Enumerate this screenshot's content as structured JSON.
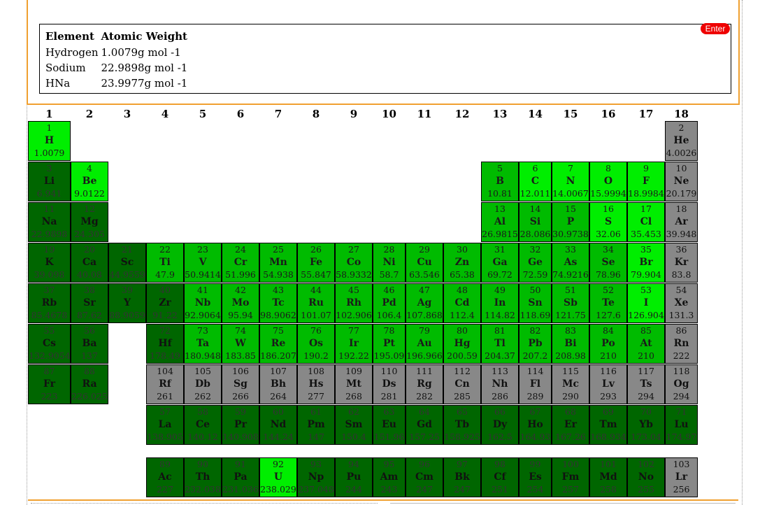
{
  "top_cut_text": "Na",
  "result_table": {
    "headers": [
      "Element",
      "Atomic Weight"
    ],
    "rows": [
      {
        "element": "Hydrogen",
        "weight": "1.0079g mol -1"
      },
      {
        "element": "Sodium",
        "weight": "22.9898g mol -1"
      },
      {
        "element": "HNa",
        "weight": "23.9977g mol -1"
      }
    ]
  },
  "enter_label": "Enter",
  "colors": {
    "bright": "#00ee00",
    "mid": "#00bb00",
    "dark": "#006600",
    "gray": "#888888",
    "panel_border": "#f0a030",
    "button": "#ee0000"
  },
  "groups": [
    "1",
    "2",
    "3",
    "4",
    "5",
    "6",
    "7",
    "8",
    "9",
    "10",
    "11",
    "12",
    "13",
    "14",
    "15",
    "16",
    "17",
    "18"
  ],
  "elements": [
    {
      "g": 1,
      "r": 1,
      "n": "1",
      "s": "H",
      "w": "1.0079",
      "c": "bright"
    },
    {
      "g": 18,
      "r": 1,
      "n": "2",
      "s": "He",
      "w": "4.0026",
      "c": "gray"
    },
    {
      "g": 1,
      "r": 2,
      "n": "3",
      "s": "Li",
      "w": "6.941",
      "c": "dark"
    },
    {
      "g": 2,
      "r": 2,
      "n": "4",
      "s": "Be",
      "w": "9.0122",
      "c": "bright"
    },
    {
      "g": 13,
      "r": 2,
      "n": "5",
      "s": "B",
      "w": "10.81",
      "c": "mid"
    },
    {
      "g": 14,
      "r": 2,
      "n": "6",
      "s": "C",
      "w": "12.011",
      "c": "bright"
    },
    {
      "g": 15,
      "r": 2,
      "n": "7",
      "s": "N",
      "w": "14.0067",
      "c": "bright"
    },
    {
      "g": 16,
      "r": 2,
      "n": "8",
      "s": "O",
      "w": "15.9994",
      "c": "bright"
    },
    {
      "g": 17,
      "r": 2,
      "n": "9",
      "s": "F",
      "w": "18.9984",
      "c": "bright"
    },
    {
      "g": 18,
      "r": 2,
      "n": "10",
      "s": "Ne",
      "w": "20.179",
      "c": "gray"
    },
    {
      "g": 1,
      "r": 3,
      "n": "11",
      "s": "Na",
      "w": "22.9898",
      "c": "dark"
    },
    {
      "g": 2,
      "r": 3,
      "n": "12",
      "s": "Mg",
      "w": "24.305",
      "c": "dark"
    },
    {
      "g": 13,
      "r": 3,
      "n": "13",
      "s": "Al",
      "w": "26.9815",
      "c": "mid"
    },
    {
      "g": 14,
      "r": 3,
      "n": "14",
      "s": "Si",
      "w": "28.086",
      "c": "mid"
    },
    {
      "g": 15,
      "r": 3,
      "n": "15",
      "s": "P",
      "w": "30.9738",
      "c": "mid"
    },
    {
      "g": 16,
      "r": 3,
      "n": "16",
      "s": "S",
      "w": "32.06",
      "c": "bright"
    },
    {
      "g": 17,
      "r": 3,
      "n": "17",
      "s": "Cl",
      "w": "35.453",
      "c": "bright"
    },
    {
      "g": 18,
      "r": 3,
      "n": "18",
      "s": "Ar",
      "w": "39.948",
      "c": "gray"
    },
    {
      "g": 1,
      "r": 4,
      "n": "19",
      "s": "K",
      "w": "39.098",
      "c": "dark"
    },
    {
      "g": 2,
      "r": 4,
      "n": "20",
      "s": "Ca",
      "w": "40.08",
      "c": "dark"
    },
    {
      "g": 3,
      "r": 4,
      "n": "21",
      "s": "Sc",
      "w": "44.9559",
      "c": "dark"
    },
    {
      "g": 4,
      "r": 4,
      "n": "22",
      "s": "Ti",
      "w": "47.9",
      "c": "mid"
    },
    {
      "g": 5,
      "r": 4,
      "n": "23",
      "s": "V",
      "w": "50.9414",
      "c": "mid"
    },
    {
      "g": 6,
      "r": 4,
      "n": "24",
      "s": "Cr",
      "w": "51.996",
      "c": "mid"
    },
    {
      "g": 7,
      "r": 4,
      "n": "25",
      "s": "Mn",
      "w": "54.938",
      "c": "mid"
    },
    {
      "g": 8,
      "r": 4,
      "n": "26",
      "s": "Fe",
      "w": "55.847",
      "c": "mid"
    },
    {
      "g": 9,
      "r": 4,
      "n": "27",
      "s": "Co",
      "w": "58.9332",
      "c": "mid"
    },
    {
      "g": 10,
      "r": 4,
      "n": "28",
      "s": "Ni",
      "w": "58.7",
      "c": "mid"
    },
    {
      "g": 11,
      "r": 4,
      "n": "29",
      "s": "Cu",
      "w": "63.546",
      "c": "mid"
    },
    {
      "g": 12,
      "r": 4,
      "n": "30",
      "s": "Zn",
      "w": "65.38",
      "c": "mid"
    },
    {
      "g": 13,
      "r": 4,
      "n": "31",
      "s": "Ga",
      "w": "69.72",
      "c": "mid"
    },
    {
      "g": 14,
      "r": 4,
      "n": "32",
      "s": "Ge",
      "w": "72.59",
      "c": "mid"
    },
    {
      "g": 15,
      "r": 4,
      "n": "33",
      "s": "As",
      "w": "74.9216",
      "c": "mid"
    },
    {
      "g": 16,
      "r": 4,
      "n": "34",
      "s": "Se",
      "w": "78.96",
      "c": "mid"
    },
    {
      "g": 17,
      "r": 4,
      "n": "35",
      "s": "Br",
      "w": "79.904",
      "c": "bright"
    },
    {
      "g": 18,
      "r": 4,
      "n": "36",
      "s": "Kr",
      "w": "83.8",
      "c": "gray"
    },
    {
      "g": 1,
      "r": 5,
      "n": "37",
      "s": "Rb",
      "w": "85.4678",
      "c": "dark"
    },
    {
      "g": 2,
      "r": 5,
      "n": "38",
      "s": "Sr",
      "w": "87.62",
      "c": "dark"
    },
    {
      "g": 3,
      "r": 5,
      "n": "39",
      "s": "Y",
      "w": "88.9059",
      "c": "dark"
    },
    {
      "g": 4,
      "r": 5,
      "n": "40",
      "s": "Zr",
      "w": "91.22",
      "c": "dark"
    },
    {
      "g": 5,
      "r": 5,
      "n": "41",
      "s": "Nb",
      "w": "92.9064",
      "c": "mid"
    },
    {
      "g": 6,
      "r": 5,
      "n": "42",
      "s": "Mo",
      "w": "95.94",
      "c": "mid"
    },
    {
      "g": 7,
      "r": 5,
      "n": "43",
      "s": "Tc",
      "w": "98.9062",
      "c": "mid"
    },
    {
      "g": 8,
      "r": 5,
      "n": "44",
      "s": "Ru",
      "w": "101.07",
      "c": "mid"
    },
    {
      "g": 9,
      "r": 5,
      "n": "45",
      "s": "Rh",
      "w": "102.906",
      "c": "mid"
    },
    {
      "g": 10,
      "r": 5,
      "n": "46",
      "s": "Pd",
      "w": "106.4",
      "c": "mid"
    },
    {
      "g": 11,
      "r": 5,
      "n": "47",
      "s": "Ag",
      "w": "107.868",
      "c": "mid"
    },
    {
      "g": 12,
      "r": 5,
      "n": "48",
      "s": "Cd",
      "w": "112.4",
      "c": "mid"
    },
    {
      "g": 13,
      "r": 5,
      "n": "49",
      "s": "In",
      "w": "114.82",
      "c": "mid"
    },
    {
      "g": 14,
      "r": 5,
      "n": "50",
      "s": "Sn",
      "w": "118.69",
      "c": "mid"
    },
    {
      "g": 15,
      "r": 5,
      "n": "51",
      "s": "Sb",
      "w": "121.75",
      "c": "mid"
    },
    {
      "g": 16,
      "r": 5,
      "n": "52",
      "s": "Te",
      "w": "127.6",
      "c": "mid"
    },
    {
      "g": 17,
      "r": 5,
      "n": "53",
      "s": "I",
      "w": "126.904",
      "c": "bright"
    },
    {
      "g": 18,
      "r": 5,
      "n": "54",
      "s": "Xe",
      "w": "131.3",
      "c": "gray"
    },
    {
      "g": 1,
      "r": 6,
      "n": "55",
      "s": "Cs",
      "w": "132.9054",
      "c": "dark"
    },
    {
      "g": 2,
      "r": 6,
      "n": "56",
      "s": "Ba",
      "w": "137",
      "c": "dark"
    },
    {
      "g": 4,
      "r": 6,
      "n": "72",
      "s": "Hf",
      "w": "178.49",
      "c": "dark"
    },
    {
      "g": 5,
      "r": 6,
      "n": "73",
      "s": "Ta",
      "w": "180.948",
      "c": "mid"
    },
    {
      "g": 6,
      "r": 6,
      "n": "74",
      "s": "W",
      "w": "183.85",
      "c": "mid"
    },
    {
      "g": 7,
      "r": 6,
      "n": "75",
      "s": "Re",
      "w": "186.207",
      "c": "mid"
    },
    {
      "g": 8,
      "r": 6,
      "n": "76",
      "s": "Os",
      "w": "190.2",
      "c": "mid"
    },
    {
      "g": 9,
      "r": 6,
      "n": "77",
      "s": "Ir",
      "w": "192.22",
      "c": "mid"
    },
    {
      "g": 10,
      "r": 6,
      "n": "78",
      "s": "Pt",
      "w": "195.09",
      "c": "mid"
    },
    {
      "g": 11,
      "r": 6,
      "n": "79",
      "s": "Au",
      "w": "196.966",
      "c": "mid"
    },
    {
      "g": 12,
      "r": 6,
      "n": "80",
      "s": "Hg",
      "w": "200.59",
      "c": "mid"
    },
    {
      "g": 13,
      "r": 6,
      "n": "81",
      "s": "Tl",
      "w": "204.37",
      "c": "mid"
    },
    {
      "g": 14,
      "r": 6,
      "n": "82",
      "s": "Pb",
      "w": "207.2",
      "c": "mid"
    },
    {
      "g": 15,
      "r": 6,
      "n": "83",
      "s": "Bi",
      "w": "208.98",
      "c": "mid"
    },
    {
      "g": 16,
      "r": 6,
      "n": "84",
      "s": "Po",
      "w": "210",
      "c": "mid"
    },
    {
      "g": 17,
      "r": 6,
      "n": "85",
      "s": "At",
      "w": "210",
      "c": "mid"
    },
    {
      "g": 18,
      "r": 6,
      "n": "86",
      "s": "Rn",
      "w": "222",
      "c": "gray"
    },
    {
      "g": 1,
      "r": 7,
      "n": "87",
      "s": "Fr",
      "w": "223",
      "c": "dark"
    },
    {
      "g": 2,
      "r": 7,
      "n": "88",
      "s": "Ra",
      "w": "226.025",
      "c": "dark"
    },
    {
      "g": 4,
      "r": 7,
      "n": "104",
      "s": "Rf",
      "w": "261",
      "c": "gray"
    },
    {
      "g": 5,
      "r": 7,
      "n": "105",
      "s": "Db",
      "w": "262",
      "c": "gray"
    },
    {
      "g": 6,
      "r": 7,
      "n": "106",
      "s": "Sg",
      "w": "266",
      "c": "gray"
    },
    {
      "g": 7,
      "r": 7,
      "n": "107",
      "s": "Bh",
      "w": "264",
      "c": "gray"
    },
    {
      "g": 8,
      "r": 7,
      "n": "108",
      "s": "Hs",
      "w": "277",
      "c": "gray"
    },
    {
      "g": 9,
      "r": 7,
      "n": "109",
      "s": "Mt",
      "w": "268",
      "c": "gray"
    },
    {
      "g": 10,
      "r": 7,
      "n": "110",
      "s": "Ds",
      "w": "281",
      "c": "gray"
    },
    {
      "g": 11,
      "r": 7,
      "n": "111",
      "s": "Rg",
      "w": "282",
      "c": "gray"
    },
    {
      "g": 12,
      "r": 7,
      "n": "112",
      "s": "Cn",
      "w": "285",
      "c": "gray"
    },
    {
      "g": 13,
      "r": 7,
      "n": "113",
      "s": "Nh",
      "w": "286",
      "c": "gray"
    },
    {
      "g": 14,
      "r": 7,
      "n": "114",
      "s": "Fl",
      "w": "289",
      "c": "gray"
    },
    {
      "g": 15,
      "r": 7,
      "n": "115",
      "s": "Mc",
      "w": "290",
      "c": "gray"
    },
    {
      "g": 16,
      "r": 7,
      "n": "116",
      "s": "Lv",
      "w": "293",
      "c": "gray"
    },
    {
      "g": 17,
      "r": 7,
      "n": "117",
      "s": "Ts",
      "w": "294",
      "c": "gray"
    },
    {
      "g": 18,
      "r": 7,
      "n": "118",
      "s": "Og",
      "w": "294",
      "c": "gray"
    },
    {
      "g": 4,
      "r": 8,
      "n": "57",
      "s": "La",
      "w": "138.905",
      "c": "dark"
    },
    {
      "g": 5,
      "r": 8,
      "n": "58",
      "s": "Ce",
      "w": "140.12",
      "c": "dark"
    },
    {
      "g": 6,
      "r": 8,
      "n": "59",
      "s": "Pr",
      "w": "140.908",
      "c": "dark"
    },
    {
      "g": 7,
      "r": 8,
      "n": "60",
      "s": "Nd",
      "w": "144.24",
      "c": "dark"
    },
    {
      "g": 8,
      "r": 8,
      "n": "61",
      "s": "Pm",
      "w": "147",
      "c": "dark"
    },
    {
      "g": 9,
      "r": 8,
      "n": "62",
      "s": "Sm",
      "w": "150.4",
      "c": "dark"
    },
    {
      "g": 10,
      "r": 8,
      "n": "63",
      "s": "Eu",
      "w": "151.96",
      "c": "dark"
    },
    {
      "g": 11,
      "r": 8,
      "n": "64",
      "s": "Gd",
      "w": "157.25",
      "c": "dark"
    },
    {
      "g": 12,
      "r": 8,
      "n": "65",
      "s": "Tb",
      "w": "158.925",
      "c": "dark"
    },
    {
      "g": 13,
      "r": 8,
      "n": "66",
      "s": "Dy",
      "w": "162.5",
      "c": "dark"
    },
    {
      "g": 14,
      "r": 8,
      "n": "67",
      "s": "Ho",
      "w": "164.93",
      "c": "dark"
    },
    {
      "g": 15,
      "r": 8,
      "n": "68",
      "s": "Er",
      "w": "167.26",
      "c": "dark"
    },
    {
      "g": 16,
      "r": 8,
      "n": "69",
      "s": "Tm",
      "w": "168.934",
      "c": "dark"
    },
    {
      "g": 17,
      "r": 8,
      "n": "70",
      "s": "Yb",
      "w": "173.04",
      "c": "dark"
    },
    {
      "g": 18,
      "r": 8,
      "n": "71",
      "s": "Lu",
      "w": "174.97",
      "c": "dark"
    },
    {
      "g": 4,
      "r": 9,
      "n": "89",
      "s": "Ac",
      "w": "227",
      "c": "dark"
    },
    {
      "g": 5,
      "r": 9,
      "n": "90",
      "s": "Th",
      "w": "232.038",
      "c": "dark"
    },
    {
      "g": 6,
      "r": 9,
      "n": "91",
      "s": "Pa",
      "w": "231.036",
      "c": "dark"
    },
    {
      "g": 7,
      "r": 9,
      "n": "92",
      "s": "U",
      "w": "238.029",
      "c": "bright"
    },
    {
      "g": 8,
      "r": 9,
      "n": "93",
      "s": "Np",
      "w": "237.048",
      "c": "dark"
    },
    {
      "g": 9,
      "r": 9,
      "n": "94",
      "s": "Pu",
      "w": "244",
      "c": "dark"
    },
    {
      "g": 10,
      "r": 9,
      "n": "95",
      "s": "Am",
      "w": "243",
      "c": "dark"
    },
    {
      "g": 11,
      "r": 9,
      "n": "96",
      "s": "Cm",
      "w": "247",
      "c": "dark"
    },
    {
      "g": 12,
      "r": 9,
      "n": "97",
      "s": "Bk",
      "w": "247",
      "c": "dark"
    },
    {
      "g": 13,
      "r": 9,
      "n": "98",
      "s": "Cf",
      "w": "251",
      "c": "dark"
    },
    {
      "g": 14,
      "r": 9,
      "n": "99",
      "s": "Es",
      "w": "254",
      "c": "dark"
    },
    {
      "g": 15,
      "r": 9,
      "n": "100",
      "s": "Fm",
      "w": "257",
      "c": "dark"
    },
    {
      "g": 16,
      "r": 9,
      "n": "101",
      "s": "Md",
      "w": "258",
      "c": "dark"
    },
    {
      "g": 17,
      "r": 9,
      "n": "102",
      "s": "No",
      "w": "255",
      "c": "dark"
    },
    {
      "g": 18,
      "r": 9,
      "n": "103",
      "s": "Lr",
      "w": "256",
      "c": "gray"
    }
  ]
}
